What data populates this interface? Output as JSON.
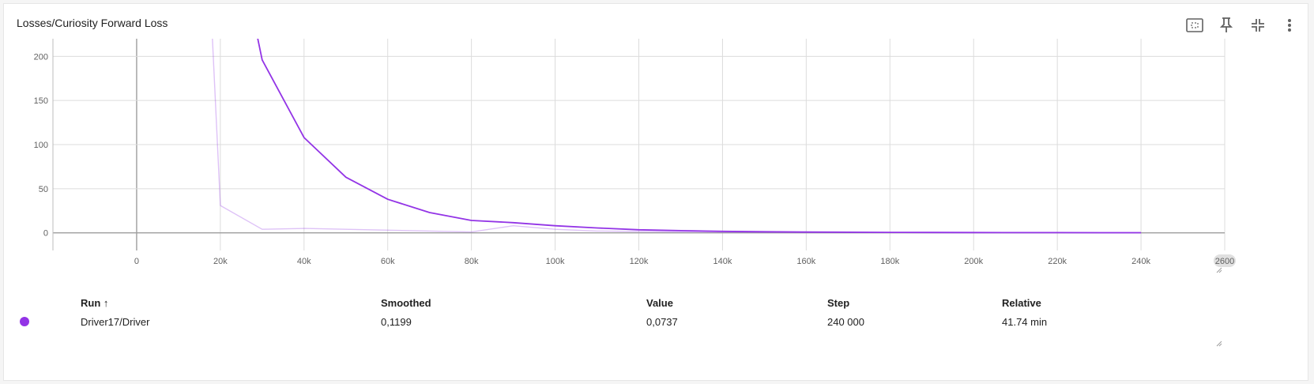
{
  "card": {
    "title": "Losses/Curiosity Forward Loss",
    "icons": [
      "fit-domain-icon",
      "pin-icon",
      "collapse-icon",
      "more-vert-icon"
    ]
  },
  "chart_data": {
    "type": "line",
    "title": "Losses/Curiosity Forward Loss",
    "xlabel": "",
    "ylabel": "",
    "xlim": [
      -20000,
      260000
    ],
    "ylim": [
      -20,
      220
    ],
    "x_ticks": [
      "0",
      "20k",
      "40k",
      "60k",
      "80k",
      "100k",
      "120k",
      "140k",
      "160k",
      "180k",
      "200k",
      "220k",
      "240k",
      "2600"
    ],
    "y_ticks": [
      "0",
      "50",
      "100",
      "150",
      "200"
    ],
    "grid": true,
    "series": [
      {
        "name": "Driver17/Driver",
        "color": "#9334e6",
        "kind": "raw",
        "x": [
          18000,
          20000,
          30000,
          40000,
          50000,
          60000,
          70000,
          80000,
          90000,
          100000,
          110000,
          120000,
          130000,
          140000,
          150000,
          160000,
          170000,
          180000,
          190000,
          200000,
          210000,
          220000,
          230000,
          240000
        ],
        "y": [
          230,
          31,
          4,
          5,
          4,
          3,
          2,
          1,
          8,
          4,
          2,
          1.5,
          1,
          0.8,
          0.6,
          0.5,
          0.4,
          0.3,
          0.25,
          0.2,
          0.15,
          0.12,
          0.1,
          0.07
        ]
      },
      {
        "name": "Driver17/Driver",
        "color": "#9334e6",
        "kind": "smoothed",
        "x": [
          28500,
          30000,
          40000,
          50000,
          60000,
          70000,
          80000,
          90000,
          100000,
          110000,
          120000,
          130000,
          140000,
          150000,
          160000,
          170000,
          180000,
          190000,
          200000,
          210000,
          220000,
          230000,
          240000
        ],
        "y": [
          230,
          196,
          108,
          63,
          38,
          23,
          14,
          11.5,
          8,
          5.5,
          3.5,
          2.5,
          1.7,
          1.2,
          0.9,
          0.7,
          0.5,
          0.4,
          0.3,
          0.25,
          0.2,
          0.15,
          0.12
        ]
      }
    ]
  },
  "table": {
    "headers": [
      "Run ↑",
      "Smoothed",
      "Value",
      "Step",
      "Relative"
    ],
    "row": {
      "color": "#9334e6",
      "run": "Driver17/Driver",
      "smoothed": "0,1199",
      "value": "0,0737",
      "step": "240 000",
      "relative": "41.74 min"
    }
  }
}
